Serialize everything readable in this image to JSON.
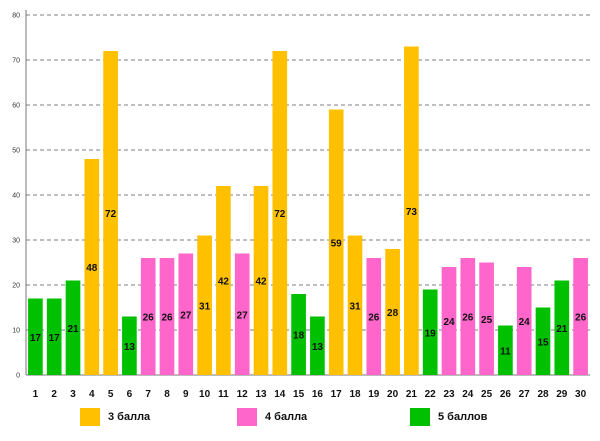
{
  "chart_data": {
    "type": "bar",
    "title": "",
    "xlabel": "",
    "ylabel": "",
    "ylim": [
      0,
      80
    ],
    "yticks": [
      0,
      10,
      20,
      30,
      40,
      50,
      60,
      70,
      80
    ],
    "grid": "horizontal-dashed",
    "legend_position": "bottom",
    "categories": [
      "1",
      "2",
      "3",
      "4",
      "5",
      "6",
      "7",
      "8",
      "9",
      "10",
      "11",
      "12",
      "13",
      "14",
      "15",
      "16",
      "17",
      "18",
      "19",
      "20",
      "21",
      "22",
      "23",
      "24",
      "25",
      "26",
      "27",
      "28",
      "29",
      "30"
    ],
    "values": [
      17,
      17,
      21,
      48,
      72,
      13,
      26,
      26,
      27,
      31,
      42,
      27,
      42,
      72,
      18,
      13,
      59,
      31,
      26,
      28,
      73,
      19,
      24,
      26,
      25,
      11,
      24,
      15,
      21,
      26
    ],
    "groups": [
      "g5",
      "g5",
      "g5",
      "g3",
      "g3",
      "g5",
      "g4",
      "g4",
      "g4",
      "g3",
      "g3",
      "g4",
      "g3",
      "g3",
      "g5",
      "g5",
      "g3",
      "g3",
      "g4",
      "g3",
      "g3",
      "g5",
      "g4",
      "g4",
      "g4",
      "g5",
      "g4",
      "g5",
      "g5",
      "g4"
    ],
    "legend": [
      {
        "key": "g3",
        "label": "3 балла",
        "color": "#FFC000"
      },
      {
        "key": "g4",
        "label": "4 балла",
        "color": "#FF66CC"
      },
      {
        "key": "g5",
        "label": "5 баллов",
        "color": "#00C000"
      }
    ]
  }
}
